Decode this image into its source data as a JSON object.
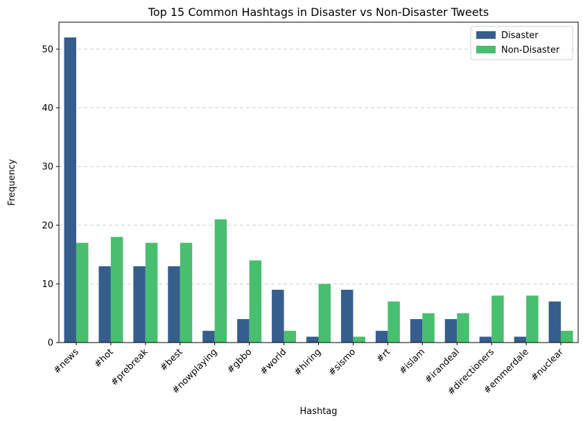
{
  "chart_data": {
    "type": "bar",
    "title": "Top 15 Common Hashtags in Disaster vs Non-Disaster Tweets",
    "xlabel": "Hashtag",
    "ylabel": "Frequency",
    "categories": [
      "#news",
      "#hot",
      "#prebreak",
      "#best",
      "#nowplaying",
      "#gbbo",
      "#world",
      "#hiring",
      "#sismo",
      "#rt",
      "#islam",
      "#irandeal",
      "#directioners",
      "#emmerdale",
      "#nuclear"
    ],
    "series": [
      {
        "name": "Disaster",
        "color": "#365e8d",
        "values": [
          52,
          13,
          13,
          13,
          2,
          4,
          9,
          1,
          9,
          2,
          4,
          4,
          1,
          1,
          7
        ]
      },
      {
        "name": "Non-Disaster",
        "color": "#48bf6e",
        "values": [
          17,
          18,
          17,
          17,
          21,
          14,
          2,
          10,
          1,
          7,
          5,
          5,
          8,
          8,
          2
        ]
      }
    ],
    "ylim": [
      0,
      54.6
    ],
    "yticks": [
      0,
      10,
      20,
      30,
      40,
      50
    ],
    "grid": "y-dashed",
    "legend": "top-right"
  }
}
